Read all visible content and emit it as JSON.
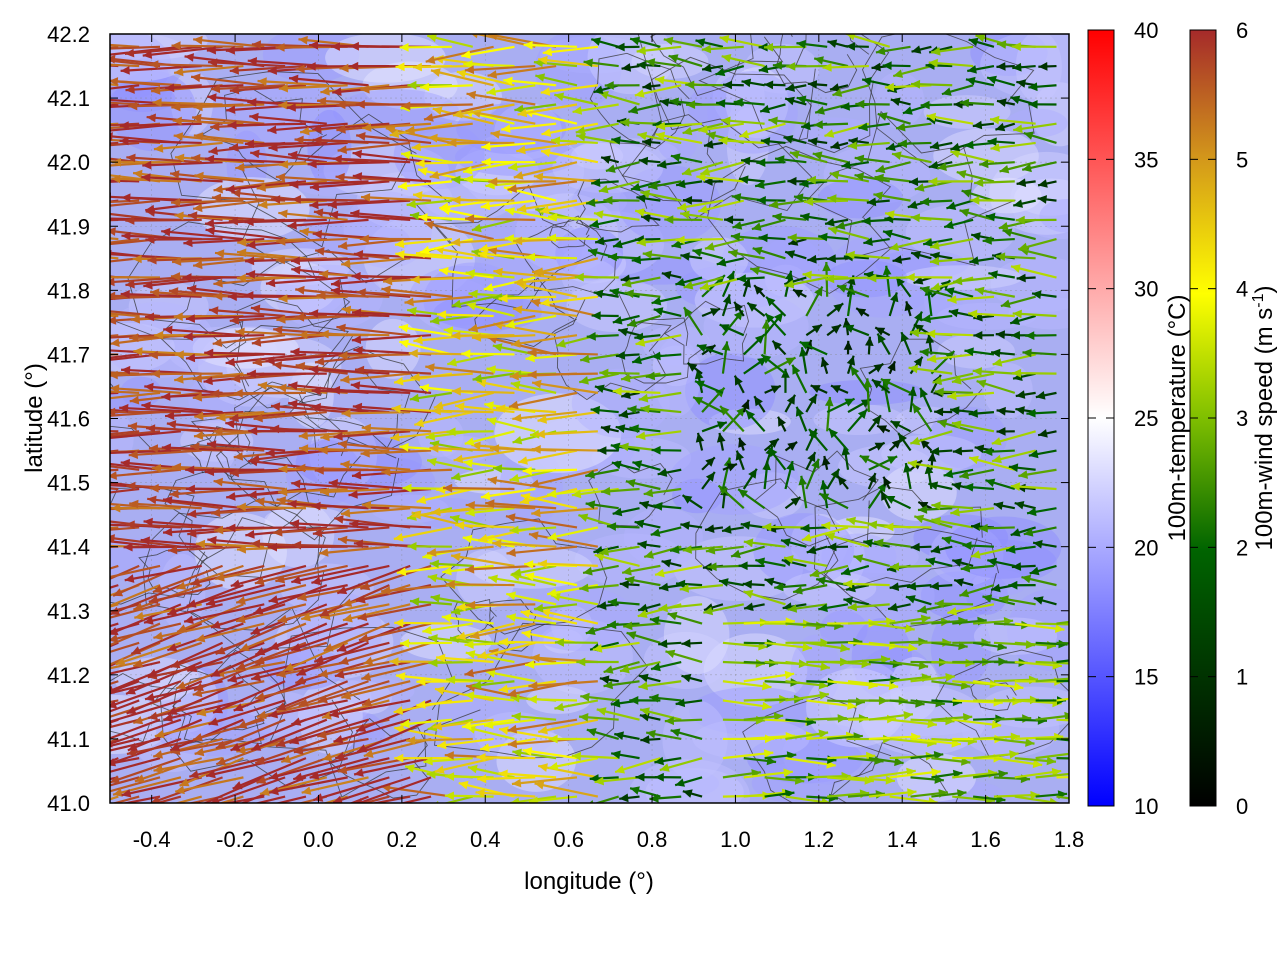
{
  "chart_data": {
    "type": "heatmap",
    "subtype": "wind-vector field over temperature map with terrain contours",
    "xlabel": "longitude (°)",
    "ylabel": "latitude (°)",
    "xlim": [
      -0.5,
      1.8
    ],
    "ylim": [
      41.0,
      42.2
    ],
    "xticks": [
      "-0.4",
      "-0.2",
      "0.0",
      "0.2",
      "0.4",
      "0.6",
      "0.8",
      "1.0",
      "1.2",
      "1.4",
      "1.6",
      "1.8"
    ],
    "xtick_values": [
      -0.4,
      -0.2,
      0.0,
      0.2,
      0.4,
      0.6,
      0.8,
      1.0,
      1.2,
      1.4,
      1.6,
      1.8
    ],
    "yticks": [
      "41.0",
      "41.1",
      "41.2",
      "41.3",
      "41.4",
      "41.5",
      "41.6",
      "41.7",
      "41.8",
      "41.9",
      "42.0",
      "42.1",
      "42.2"
    ],
    "ytick_values": [
      41.0,
      41.1,
      41.2,
      41.3,
      41.4,
      41.5,
      41.6,
      41.7,
      41.8,
      41.9,
      42.0,
      42.1,
      42.2
    ],
    "grid": true,
    "temperature_colorbar": {
      "label": "100m-temperature (°C)",
      "range": [
        10,
        40
      ],
      "ticks": [
        "10",
        "15",
        "20",
        "25",
        "30",
        "35",
        "40"
      ],
      "tick_values": [
        10,
        15,
        20,
        25,
        30,
        35,
        40
      ],
      "colors": [
        "#0000ff",
        "#ffffff",
        "#ff0000"
      ]
    },
    "wind_colorbar": {
      "label_main": "100m-wind speed (m s",
      "label_sup": "-1",
      "label_end": ")",
      "range": [
        0,
        6
      ],
      "ticks": [
        "0",
        "1",
        "2",
        "3",
        "4",
        "5",
        "6"
      ],
      "tick_values": [
        0,
        1,
        2,
        3,
        4,
        5,
        6
      ],
      "colors": [
        "#000000",
        "#006400",
        "#7fbf00",
        "#ffff00",
        "#d49a1a",
        "#a52a2a"
      ]
    },
    "field_pattern": {
      "grid_step_lon": 0.1,
      "grid_step_lat": 0.1,
      "regions": [
        {
          "lon_range": [
            -0.5,
            0.3
          ],
          "lat_range": [
            41.0,
            42.2
          ],
          "wind_speed_approx": 6,
          "direction": "from east (westward)"
        },
        {
          "lon_range": [
            0.3,
            0.7
          ],
          "lat_range": [
            41.0,
            42.2
          ],
          "wind_speed_approx": 4,
          "direction": "westward"
        },
        {
          "lon_range": [
            0.7,
            1.3
          ],
          "lat_range": [
            41.5,
            42.2
          ],
          "wind_speed_approx": 2,
          "direction": "westward"
        },
        {
          "lon_range": [
            1.0,
            1.8
          ],
          "lat_range": [
            41.0,
            41.3
          ],
          "wind_speed_approx": 2.5,
          "direction": "eastward"
        }
      ],
      "temperature_range_observed": [
        18,
        24
      ]
    }
  }
}
